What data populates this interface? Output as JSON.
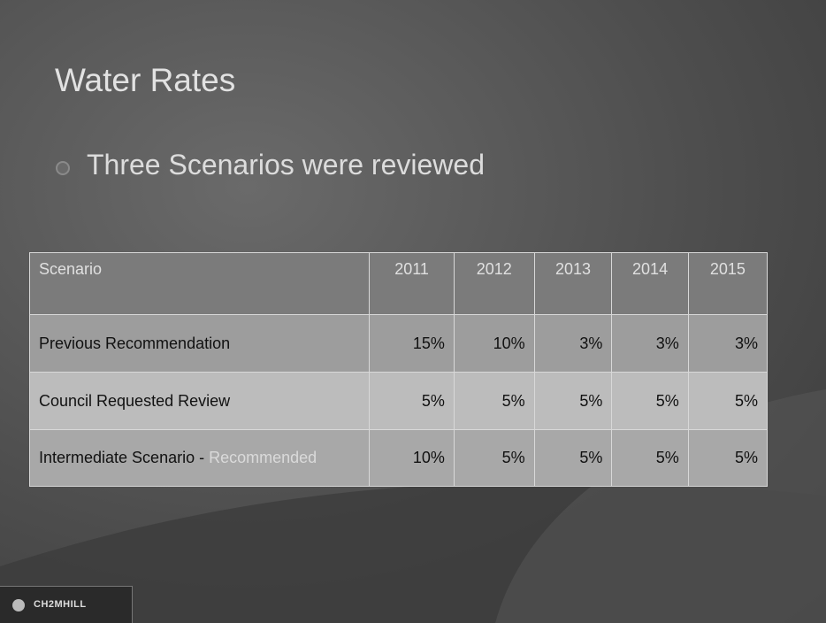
{
  "slide": {
    "title": "Water Rates",
    "bullet": "Three Scenarios were reviewed",
    "table": {
      "header": [
        "Scenario",
        "2011",
        "2012",
        "2013",
        "2014",
        "2015"
      ],
      "rows": [
        [
          [
            "Previous Recommendation"
          ],
          "15%",
          "10%",
          "3%",
          "3%",
          "3%"
        ],
        [
          [
            "Council Requested Review"
          ],
          "5%",
          "5%",
          "5%",
          "5%",
          "5%"
        ],
        [
          [
            "Intermediate Scenario - ",
            "Recommended"
          ],
          "10%",
          "5%",
          "5%",
          "5%",
          "5%"
        ]
      ]
    },
    "footer": {
      "logo": "CH2MHILL"
    }
  }
}
